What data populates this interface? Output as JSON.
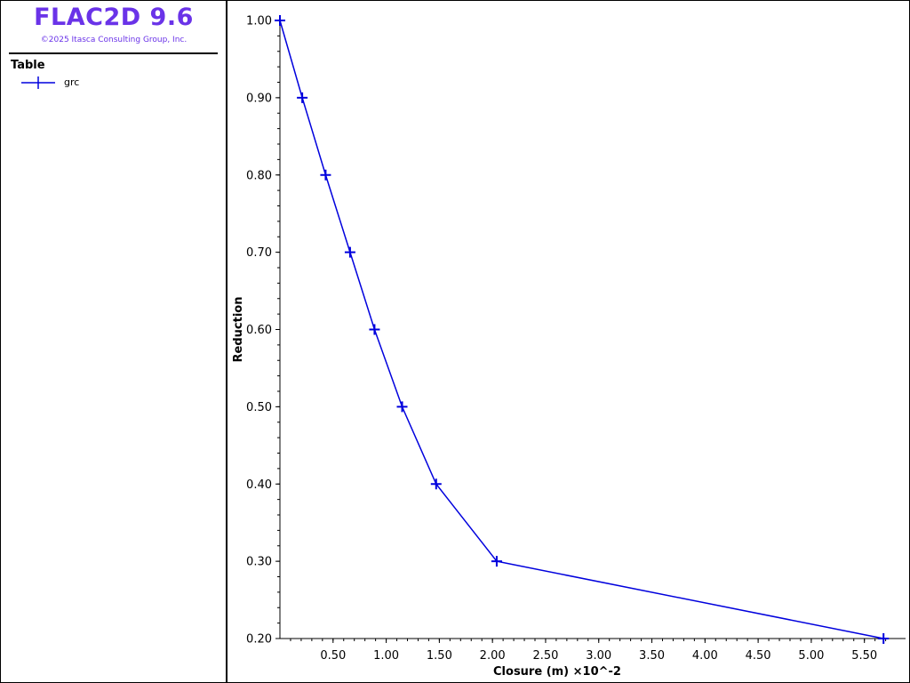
{
  "app": {
    "title": "FLAC2D 9.6",
    "copyright": "©2025 Itasca Consulting Group, Inc."
  },
  "legend": {
    "title": "Table",
    "items": [
      {
        "label": "grc",
        "color": "#0000dd",
        "marker": "plus-marker"
      }
    ]
  },
  "chart_data": {
    "type": "line",
    "xlabel": "Closure (m) ×10^-2",
    "ylabel": "Reduction",
    "x_scale_note": "×10^-2",
    "xlim": [
      0.0,
      5.72
    ],
    "ylim": [
      0.2,
      1.0
    ],
    "x_ticks": [
      "0.50",
      "1.00",
      "1.50",
      "2.00",
      "2.50",
      "3.00",
      "3.50",
      "4.00",
      "4.50",
      "5.00",
      "5.50"
    ],
    "y_ticks": [
      "0.20",
      "0.30",
      "0.40",
      "0.50",
      "0.60",
      "0.70",
      "0.80",
      "0.90",
      "1.00"
    ],
    "grid": false,
    "series": [
      {
        "name": "grc",
        "color": "#0000dd",
        "x": [
          0.0,
          0.21,
          0.43,
          0.66,
          0.89,
          1.15,
          1.47,
          2.04,
          5.68
        ],
        "y": [
          1.0,
          0.9,
          0.8,
          0.7,
          0.6,
          0.5,
          0.4,
          0.3,
          0.2
        ]
      }
    ]
  }
}
